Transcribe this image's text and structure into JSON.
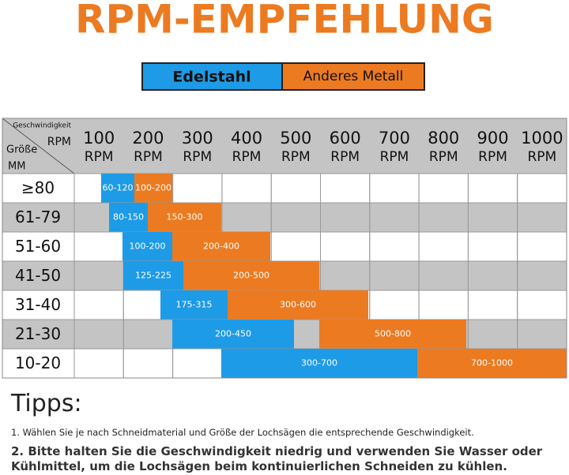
{
  "header": {
    "title": "RPM-EMPFEHLUNG",
    "legend": [
      "Edelstahl",
      "Anderes Metall"
    ]
  },
  "table": {
    "corner": {
      "speed": "Geschwindigkeit",
      "rpm": "RPM",
      "size": "Größe",
      "mm": "MM"
    },
    "columns": [
      {
        "number": "100",
        "unit": "RPM"
      },
      {
        "number": "200",
        "unit": "RPM"
      },
      {
        "number": "300",
        "unit": "RPM"
      },
      {
        "number": "400",
        "unit": "RPM"
      },
      {
        "number": "500",
        "unit": "RPM"
      },
      {
        "number": "600",
        "unit": "RPM"
      },
      {
        "number": "700",
        "unit": "RPM"
      },
      {
        "number": "800",
        "unit": "RPM"
      },
      {
        "number": "900",
        "unit": "RPM"
      },
      {
        "number": "1000",
        "unit": "RPM"
      }
    ],
    "rows": [
      {
        "size": "≥80",
        "stainless": "60-120",
        "other": "100-200"
      },
      {
        "size": "61-79",
        "stainless": "80-150",
        "other": "150-300"
      },
      {
        "size": "51-60",
        "stainless": "100-200",
        "other": "200-400"
      },
      {
        "size": "41-50",
        "stainless": "125-225",
        "other": "200-500"
      },
      {
        "size": "31-40",
        "stainless": "175-315",
        "other": "300-600"
      },
      {
        "size": "21-30",
        "stainless": "200-450",
        "other": "500-800"
      },
      {
        "size": "10-20",
        "stainless": "300-700",
        "other": "700-1000"
      }
    ]
  },
  "tips": {
    "title": "Tipps:",
    "items": [
      "1. Wählen Sie je nach Schneidmaterial und Größe der Lochsägen die entsprechende Geschwindigkeit.",
      "2. Bitte halten Sie die Geschwindigkeit niedrig und verwenden Sie Wasser oder Kühlmittel, um die Lochsägen beim kontinuierlichen Schneiden zu kühlen."
    ]
  }
}
